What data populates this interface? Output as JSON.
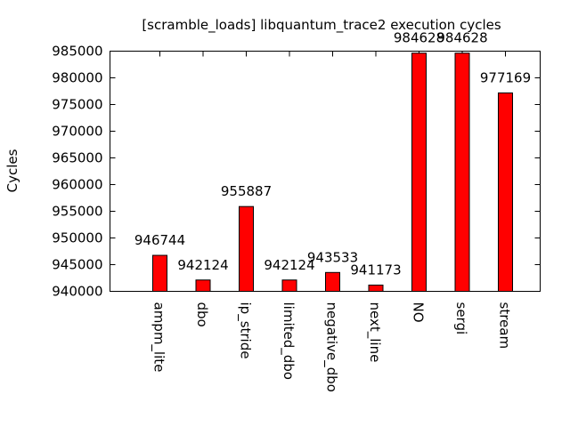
{
  "chart_data": {
    "type": "bar",
    "title": "[scramble_loads] libquantum_trace2 execution cycles",
    "xlabel": "",
    "ylabel": "Cycles",
    "categories": [
      "ampm_lite",
      "dbo",
      "ip_stride",
      "limited_dbo",
      "negative_dbo",
      "next_line",
      "NO",
      "sergi",
      "stream"
    ],
    "values": [
      946744,
      942124,
      955887,
      942124,
      943533,
      941173,
      984628,
      984628,
      977169
    ],
    "value_labels": [
      "946744",
      "942124",
      "955887",
      "942124",
      "943533",
      "941173",
      "984628",
      "984628",
      "977169"
    ],
    "ylim": [
      940000,
      985000
    ],
    "yticks": [
      940000,
      945000,
      950000,
      955000,
      960000,
      965000,
      970000,
      975000,
      980000,
      985000
    ],
    "ytick_labels": [
      "940000",
      "945000",
      "950000",
      "955000",
      "960000",
      "965000",
      "970000",
      "975000",
      "980000",
      "985000"
    ],
    "grid": false,
    "bar_color": "#ff0000"
  }
}
